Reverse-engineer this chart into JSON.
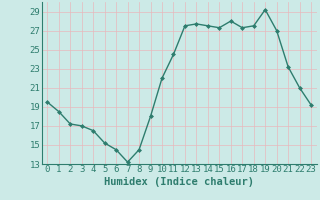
{
  "x": [
    0,
    1,
    2,
    3,
    4,
    5,
    6,
    7,
    8,
    9,
    10,
    11,
    12,
    13,
    14,
    15,
    16,
    17,
    18,
    19,
    20,
    21,
    22,
    23
  ],
  "y": [
    19.5,
    18.5,
    17.2,
    17.0,
    16.5,
    15.2,
    14.5,
    13.2,
    14.5,
    18.0,
    22.0,
    24.5,
    27.5,
    27.7,
    27.5,
    27.3,
    28.0,
    27.3,
    27.5,
    29.2,
    27.0,
    23.2,
    21.0,
    19.2
  ],
  "line_color": "#2e7d6e",
  "marker": "D",
  "marker_size": 2.0,
  "bg_color": "#cceae7",
  "grid_color": "#e8b8bc",
  "axis_color": "#2e7d6e",
  "xlabel": "Humidex (Indice chaleur)",
  "xlim": [
    -0.5,
    23.5
  ],
  "ylim": [
    13,
    30
  ],
  "yticks": [
    13,
    15,
    17,
    19,
    21,
    23,
    25,
    27,
    29
  ],
  "xlabel_fontsize": 7.5,
  "tick_fontsize": 6.5,
  "line_width": 1.0
}
